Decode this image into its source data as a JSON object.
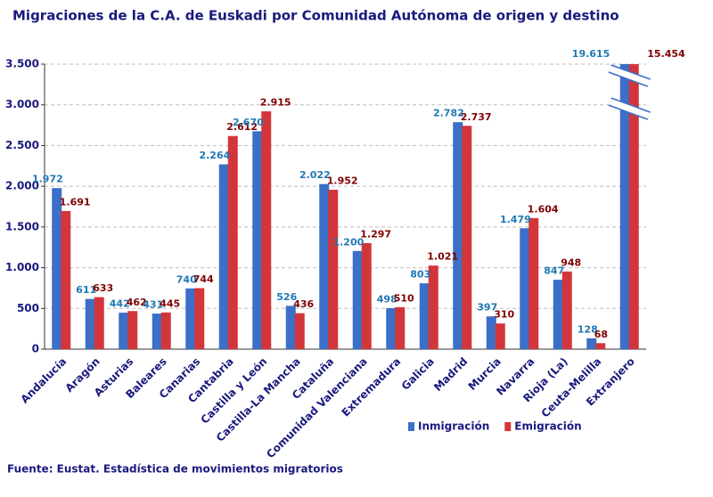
{
  "chart_data": {
    "type": "bar",
    "title": "Migraciones de la C.A. de Euskadi por Comunidad Autónoma de origen y destino",
    "source": "Fuente: Eustat. Estadística de movimientos migratorios",
    "categories": [
      "Andalucía",
      "Aragón",
      "Asturias",
      "Baleares",
      "Canarias",
      "Cantabria",
      "Castilla y León",
      "Castilla-La Mancha",
      "Cataluña",
      "Comunidad Valenciana",
      "Extremadura",
      "Galicia",
      "Madrid",
      "Murcia",
      "Navarra",
      "Rioja (La)",
      "Ceuta-Melilla",
      "Extranjero"
    ],
    "series": [
      {
        "name": "Inmigración",
        "color": "#3b6fc8",
        "label_color": "#1f78b4",
        "values": [
          1972,
          611,
          442,
          431,
          740,
          2264,
          2670,
          526,
          2022,
          1200,
          498,
          803,
          2782,
          397,
          1479,
          847,
          128,
          19615
        ],
        "value_labels": [
          "1.972",
          "611",
          "442",
          "431",
          "740",
          "2.264",
          "2.670",
          "526",
          "2.022",
          "1.200",
          "498",
          "803",
          "2.782",
          "397",
          "1.479",
          "847",
          "128",
          "19.615"
        ]
      },
      {
        "name": "Emigración",
        "color": "#d2363b",
        "label_color": "#800000",
        "values": [
          1691,
          633,
          462,
          445,
          744,
          2612,
          2915,
          436,
          1952,
          1297,
          510,
          1021,
          2737,
          310,
          1604,
          948,
          68,
          15454
        ],
        "value_labels": [
          "1.691",
          "633",
          "462",
          "445",
          "744",
          "2.612",
          "2.915",
          "436",
          "1.952",
          "1.297",
          "510",
          "1.021",
          "2.737",
          "310",
          "1.604",
          "948",
          "68",
          "15.454"
        ]
      }
    ],
    "ylim": [
      0,
      3500
    ],
    "yticks": [
      0,
      500,
      {
        "value": 1000,
        "label": "1.000"
      },
      {
        "value": 1500,
        "label": "1.500"
      },
      {
        "value": 2000,
        "label": "2.000"
      },
      {
        "value": 2500,
        "label": "2.500"
      },
      {
        "value": 3000,
        "label": "3.000"
      },
      {
        "value": 3500,
        "label": "3.500"
      }
    ],
    "grid": true,
    "legend": "bottom"
  }
}
